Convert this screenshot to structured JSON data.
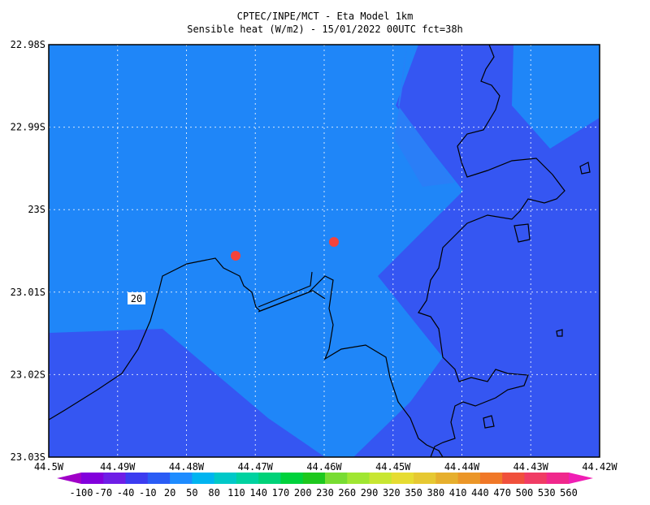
{
  "header": {
    "title": "CPTEC/INPE/MCT -  Eta Model 1km",
    "subtitle": "Sensible heat (W/m2) - 15/01/2022 00UTC fct=38h"
  },
  "map": {
    "lon_labels": [
      "44.5W",
      "44.49W",
      "44.48W",
      "44.47W",
      "44.46W",
      "44.45W",
      "44.44W",
      "44.43W",
      "44.42W"
    ],
    "lat_labels": [
      "22.98S",
      "22.99S",
      "23S",
      "23.01S",
      "23.02S",
      "23.03S"
    ],
    "contour_label": "20"
  },
  "colorbar": {
    "labels": [
      "-100",
      "-70",
      "-40",
      "-10",
      "20",
      "50",
      "80",
      "110",
      "140",
      "170",
      "200",
      "230",
      "260",
      "290",
      "320",
      "350",
      "380",
      "410",
      "440",
      "470",
      "500",
      "530",
      "560"
    ]
  }
}
